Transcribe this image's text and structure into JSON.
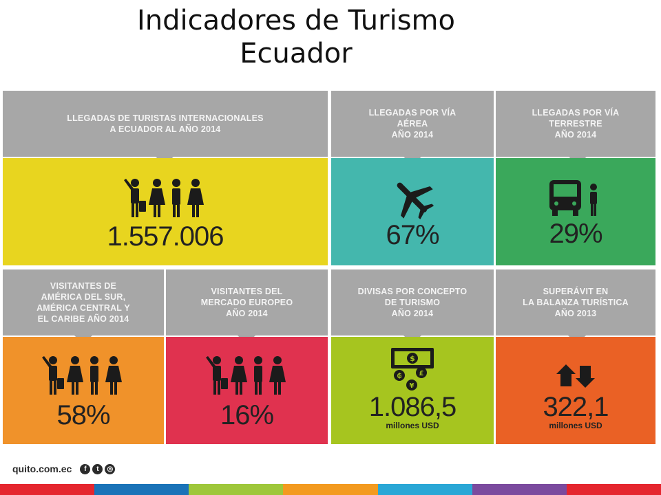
{
  "title": {
    "line1": "Indicadores de Turismo",
    "line2": "Ecuador"
  },
  "panels": [
    {
      "id": "llegadas-internacionales",
      "header": [
        "LLEGADAS DE TURISTAS INTERNACIONALES",
        "A ECUADOR AL AÑO 2014"
      ],
      "value": "1.557.006",
      "unit": "",
      "icon": "tourists-icon",
      "color": "#e8d51f"
    },
    {
      "id": "via-aerea",
      "header": [
        "LLEGADAS POR VÍA",
        "AÉREA",
        "AÑO 2014"
      ],
      "value": "67%",
      "unit": "",
      "icon": "airplane-icon",
      "color": "#44b7ad"
    },
    {
      "id": "via-terrestre",
      "header": [
        "LLEGADAS POR VÍA",
        "TERRESTRE",
        "AÑO 2014"
      ],
      "value": "29%",
      "unit": "",
      "icon": "bus-icon",
      "color": "#3aa85b"
    },
    {
      "id": "america",
      "header": [
        "VISITANTES DE",
        "AMÉRICA DEL SUR,",
        "AMÉRICA CENTRAL Y",
        "EL CARIBE AÑO 2014"
      ],
      "value": "58%",
      "unit": "",
      "icon": "tourists-icon",
      "color": "#f0922a"
    },
    {
      "id": "europeo",
      "header": [
        "VISITANTES DEL",
        "MERCADO EUROPEO",
        "AÑO 2014"
      ],
      "value": "16%",
      "unit": "",
      "icon": "tourists-icon",
      "color": "#e0324f"
    },
    {
      "id": "divisas",
      "header": [
        "DIVISAS POR CONCEPTO",
        "DE TURISMO",
        "AÑO 2014"
      ],
      "value": "1.086,5",
      "unit": "millones USD",
      "icon": "currency-icon",
      "color": "#a6c51f"
    },
    {
      "id": "superavit",
      "header": [
        "SUPERÁVIT EN",
        "LA BALANZA TURÍSTICA",
        "AÑO 2013"
      ],
      "value": "322,1",
      "unit": "millones USD",
      "icon": "up-down-arrows-icon",
      "color": "#ea6125"
    }
  ],
  "footer": {
    "logo_text": "quito.com.ec",
    "social": [
      {
        "icon": "facebook-icon",
        "glyph": "f"
      },
      {
        "icon": "twitter-icon",
        "glyph": "t"
      },
      {
        "icon": "instagram-icon",
        "glyph": "◎"
      }
    ],
    "stripe_colors": [
      "#e5262e",
      "#1a73b8",
      "#9ec73a",
      "#f39a1f",
      "#2aa7d6",
      "#7b4a9e",
      "#e5262e"
    ]
  }
}
